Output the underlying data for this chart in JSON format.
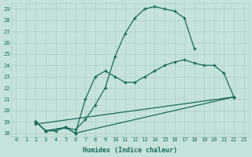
{
  "xlabel": "Humidex (Indice chaleur)",
  "bg_color": "#c5e3dc",
  "grid_color": "#aacfc7",
  "line_color": "#1a6b5a",
  "xlim": [
    -0.5,
    23.5
  ],
  "ylim": [
    17.7,
    29.5
  ],
  "xticks": [
    0,
    1,
    2,
    3,
    4,
    5,
    6,
    7,
    8,
    9,
    10,
    11,
    12,
    13,
    14,
    15,
    16,
    17,
    18,
    19,
    20,
    21,
    22,
    23
  ],
  "yticks": [
    18,
    19,
    20,
    21,
    22,
    23,
    24,
    25,
    26,
    27,
    28,
    29
  ],
  "lines": [
    {
      "x": [
        2,
        3,
        4,
        5,
        6,
        7,
        8,
        9,
        10,
        11,
        12,
        13,
        14,
        15,
        16,
        17,
        18
      ],
      "y": [
        19.0,
        18.2,
        18.2,
        18.5,
        18.3,
        19.2,
        20.5,
        22.0,
        24.8,
        26.8,
        28.2,
        29.0,
        29.2,
        29.0,
        28.8,
        28.2,
        25.5
      ]
    },
    {
      "x": [
        2,
        3,
        5,
        6,
        7,
        8,
        9,
        10,
        11,
        12,
        13,
        14,
        15,
        16,
        17,
        18,
        19,
        20,
        21,
        22
      ],
      "y": [
        19.0,
        18.2,
        18.5,
        18.0,
        21.0,
        23.0,
        23.5,
        23.0,
        22.5,
        22.5,
        23.0,
        23.5,
        24.0,
        24.3,
        24.5,
        24.2,
        24.0,
        24.0,
        23.3,
        21.2
      ]
    },
    {
      "x": [
        2,
        22
      ],
      "y": [
        18.8,
        21.2
      ]
    },
    {
      "x": [
        2,
        3,
        5,
        6,
        22
      ],
      "y": [
        19.0,
        18.2,
        18.5,
        18.0,
        21.2
      ]
    }
  ]
}
